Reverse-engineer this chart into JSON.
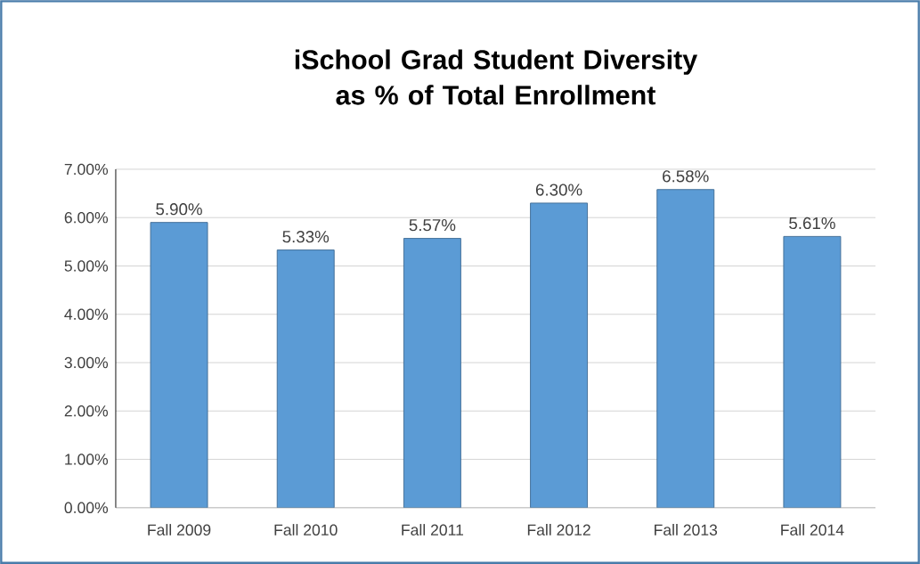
{
  "chart_data": {
    "type": "bar",
    "title": "iSchool Grad Student Diversity as % of Total Enrollment",
    "categories": [
      "Fall 2009",
      "Fall 2010",
      "Fall 2011",
      "Fall 2012",
      "Fall 2013",
      "Fall 2014"
    ],
    "values": [
      5.9,
      5.33,
      5.57,
      6.3,
      6.58,
      5.61
    ],
    "value_labels": [
      "5.90%",
      "5.33%",
      "5.57%",
      "6.30%",
      "6.58%",
      "5.61%"
    ],
    "color": "#5b9bd5",
    "ylim": [
      0,
      7
    ],
    "yticks": [
      {
        "value": 0,
        "label": "0.00%"
      },
      {
        "value": 1,
        "label": "1.00%"
      },
      {
        "value": 2,
        "label": "2.00%"
      },
      {
        "value": 3,
        "label": "3.00%"
      },
      {
        "value": 4,
        "label": "4.00%"
      },
      {
        "value": 5,
        "label": "5.00%"
      },
      {
        "value": 6,
        "label": "6.00%"
      },
      {
        "value": 7,
        "label": "7.00%"
      }
    ],
    "grid": "y"
  }
}
